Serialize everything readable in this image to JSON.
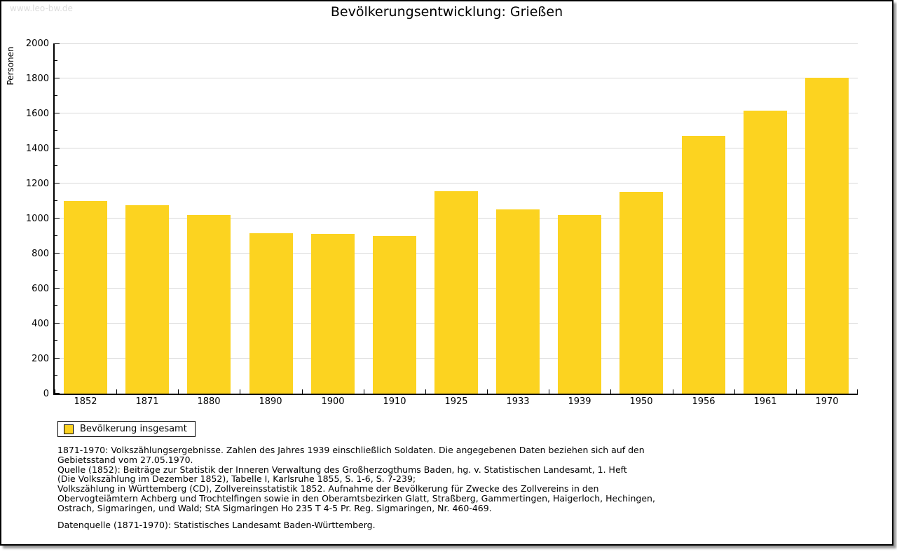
{
  "page": {
    "watermark": "www.leo-bw.de",
    "title": "Bevölkerungsentwicklung: Grießen",
    "watermark_color": "#DCDCDC"
  },
  "chart_data": {
    "type": "bar",
    "title": "Bevölkerungsentwicklung: Grießen",
    "xlabel": "",
    "ylabel": "Personen",
    "categories": [
      "1852",
      "1871",
      "1880",
      "1890",
      "1900",
      "1910",
      "1925",
      "1933",
      "1939",
      "1950",
      "1956",
      "1961",
      "1970"
    ],
    "values": [
      1100,
      1075,
      1020,
      915,
      910,
      900,
      1155,
      1050,
      1020,
      1150,
      1470,
      1615,
      1805
    ],
    "series_name": "Bevölkerung insgesamt",
    "ylim": [
      0,
      2000
    ],
    "yticks": [
      0,
      200,
      400,
      600,
      800,
      1000,
      1200,
      1400,
      1600,
      1800,
      2000
    ],
    "minor_tick_step": 100,
    "grid": true,
    "gridline_color": "#D9D9D9",
    "bar_color": "#FCD320",
    "legend_label": "Bevölkerung insgesamt",
    "legend_position": "bottom-left"
  },
  "footer": {
    "notes_lines": [
      "1871-1970: Volkszählungsergebnisse. Zahlen des Jahres 1939 einschließlich Soldaten. Die angegebenen Daten beziehen sich auf den",
      "Gebietsstand vom 27.05.1970.",
      "Quelle (1852): Beiträge zur Statistik der Inneren Verwaltung des Großherzogthums Baden, hg. v. Statistischen Landesamt, 1. Heft",
      "(Die Volkszählung im Dezember 1852), Tabelle I, Karlsruhe 1855, S. 1-6, S. 7-239;",
      "Volkszählung in Württemberg (CD), Zollvereinsstatistik 1852. Aufnahme der Bevölkerung für Zwecke des Zollvereins in den",
      "Obervogteiämtern Achberg und Trochtelfingen sowie in den Oberamtsbezirken Glatt, Straßberg, Gammertingen, Haigerloch, Hechingen,",
      "Ostrach, Sigmaringen, und Wald; StA Sigmaringen Ho 235 T 4-5 Pr. Reg. Sigmaringen, Nr. 460-469."
    ],
    "source": "Datenquelle (1871-1970): Statistisches Landesamt Baden-Württemberg."
  }
}
